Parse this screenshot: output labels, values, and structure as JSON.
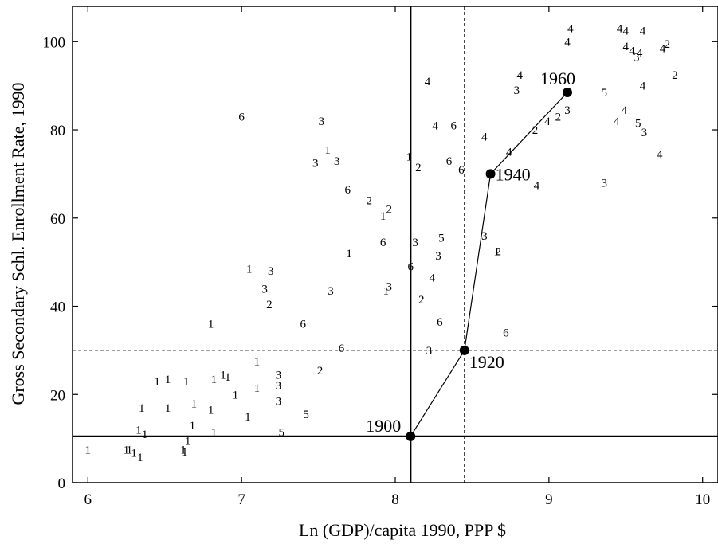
{
  "chart_data": {
    "type": "scatter",
    "xlabel": "Ln (GDP)/capita 1990, PPP $",
    "ylabel": "Gross Secondary Schl. Enrollment Rate, 1990",
    "xlim": [
      5.9,
      10.1
    ],
    "ylim": [
      0,
      108
    ],
    "x_ticks": [
      6,
      7,
      8,
      9,
      10
    ],
    "y_ticks": [
      0,
      20,
      40,
      60,
      80,
      100
    ],
    "grid": false,
    "reference_lines": [
      {
        "orientation": "vertical",
        "value": 8.1,
        "style": "solid"
      },
      {
        "orientation": "horizontal",
        "value": 10.5,
        "style": "solid"
      },
      {
        "orientation": "vertical",
        "value": 8.45,
        "style": "dashed"
      },
      {
        "orientation": "horizontal",
        "value": 30,
        "style": "dashed"
      }
    ],
    "trajectory": [
      {
        "label": "1900",
        "x": 8.1,
        "y": 10.5
      },
      {
        "label": "1920",
        "x": 8.45,
        "y": 30
      },
      {
        "label": "1940",
        "x": 8.62,
        "y": 70
      },
      {
        "label": "1960",
        "x": 9.12,
        "y": 88.5
      }
    ],
    "points": [
      {
        "x": 6.0,
        "y": 7.5,
        "label": "1"
      },
      {
        "x": 6.25,
        "y": 7.5,
        "label": "1"
      },
      {
        "x": 6.27,
        "y": 7.5,
        "label": "1"
      },
      {
        "x": 6.3,
        "y": 6.8,
        "label": "1"
      },
      {
        "x": 6.34,
        "y": 5.8,
        "label": "1"
      },
      {
        "x": 6.62,
        "y": 7.5,
        "label": "1"
      },
      {
        "x": 6.63,
        "y": 7.0,
        "label": "1"
      },
      {
        "x": 6.65,
        "y": 9.5,
        "label": "1"
      },
      {
        "x": 6.33,
        "y": 12.0,
        "label": "1"
      },
      {
        "x": 6.37,
        "y": 11.0,
        "label": "1"
      },
      {
        "x": 6.35,
        "y": 17.0,
        "label": "1"
      },
      {
        "x": 6.45,
        "y": 23.0,
        "label": "1"
      },
      {
        "x": 6.52,
        "y": 23.5,
        "label": "1"
      },
      {
        "x": 6.52,
        "y": 17.0,
        "label": "1"
      },
      {
        "x": 6.64,
        "y": 23.0,
        "label": "1"
      },
      {
        "x": 6.69,
        "y": 18.0,
        "label": "1"
      },
      {
        "x": 6.68,
        "y": 13.0,
        "label": "1"
      },
      {
        "x": 6.8,
        "y": 16.5,
        "label": "1"
      },
      {
        "x": 6.82,
        "y": 11.5,
        "label": "1"
      },
      {
        "x": 6.82,
        "y": 23.5,
        "label": "1"
      },
      {
        "x": 6.88,
        "y": 24.5,
        "label": "1"
      },
      {
        "x": 6.91,
        "y": 24.0,
        "label": "1"
      },
      {
        "x": 6.96,
        "y": 20.0,
        "label": "1"
      },
      {
        "x": 7.04,
        "y": 15.0,
        "label": "1"
      },
      {
        "x": 7.1,
        "y": 21.5,
        "label": "1"
      },
      {
        "x": 7.1,
        "y": 27.5,
        "label": "1"
      },
      {
        "x": 7.24,
        "y": 24.5,
        "label": "3"
      },
      {
        "x": 7.24,
        "y": 22.0,
        "label": "3"
      },
      {
        "x": 7.24,
        "y": 18.5,
        "label": "3"
      },
      {
        "x": 7.26,
        "y": 11.5,
        "label": "5"
      },
      {
        "x": 7.42,
        "y": 15.5,
        "label": "5"
      },
      {
        "x": 7.51,
        "y": 25.5,
        "label": "2"
      },
      {
        "x": 6.8,
        "y": 36.0,
        "label": "1"
      },
      {
        "x": 7.05,
        "y": 48.5,
        "label": "1"
      },
      {
        "x": 7.19,
        "y": 48.0,
        "label": "3"
      },
      {
        "x": 7.15,
        "y": 44.0,
        "label": "3"
      },
      {
        "x": 7.18,
        "y": 40.5,
        "label": "2"
      },
      {
        "x": 7.4,
        "y": 36.0,
        "label": "6"
      },
      {
        "x": 7.58,
        "y": 43.5,
        "label": "3"
      },
      {
        "x": 7.65,
        "y": 30.5,
        "label": "6"
      },
      {
        "x": 7.7,
        "y": 52.0,
        "label": "1"
      },
      {
        "x": 7.0,
        "y": 83.0,
        "label": "6"
      },
      {
        "x": 7.52,
        "y": 82.0,
        "label": "3"
      },
      {
        "x": 7.56,
        "y": 75.5,
        "label": "1"
      },
      {
        "x": 7.48,
        "y": 72.5,
        "label": "3"
      },
      {
        "x": 7.62,
        "y": 73.0,
        "label": "3"
      },
      {
        "x": 7.69,
        "y": 66.5,
        "label": "6"
      },
      {
        "x": 7.83,
        "y": 64.0,
        "label": "2"
      },
      {
        "x": 7.92,
        "y": 60.5,
        "label": "1"
      },
      {
        "x": 7.96,
        "y": 62.0,
        "label": "2"
      },
      {
        "x": 7.92,
        "y": 54.5,
        "label": "6"
      },
      {
        "x": 7.94,
        "y": 43.5,
        "label": "1"
      },
      {
        "x": 7.96,
        "y": 44.5,
        "label": "3"
      },
      {
        "x": 8.1,
        "y": 49.0,
        "label": "6"
      },
      {
        "x": 8.13,
        "y": 54.5,
        "label": "3"
      },
      {
        "x": 8.17,
        "y": 41.5,
        "label": "2"
      },
      {
        "x": 8.24,
        "y": 46.5,
        "label": "4"
      },
      {
        "x": 8.3,
        "y": 55.5,
        "label": "5"
      },
      {
        "x": 8.28,
        "y": 51.5,
        "label": "3"
      },
      {
        "x": 8.29,
        "y": 36.5,
        "label": "6"
      },
      {
        "x": 8.22,
        "y": 30.0,
        "label": "3"
      },
      {
        "x": 8.09,
        "y": 74.0,
        "label": "1"
      },
      {
        "x": 8.15,
        "y": 71.5,
        "label": "2"
      },
      {
        "x": 8.21,
        "y": 91.0,
        "label": "4"
      },
      {
        "x": 8.26,
        "y": 81.0,
        "label": "4"
      },
      {
        "x": 8.38,
        "y": 81.0,
        "label": "6"
      },
      {
        "x": 8.35,
        "y": 73.0,
        "label": "6"
      },
      {
        "x": 8.43,
        "y": 71.0,
        "label": "6"
      },
      {
        "x": 8.58,
        "y": 56.0,
        "label": "3"
      },
      {
        "x": 8.58,
        "y": 78.5,
        "label": "4"
      },
      {
        "x": 8.67,
        "y": 52.5,
        "label": "2"
      },
      {
        "x": 8.66,
        "y": 52.5,
        "label": "1"
      },
      {
        "x": 8.72,
        "y": 34.0,
        "label": "6"
      },
      {
        "x": 8.74,
        "y": 75.0,
        "label": "4"
      },
      {
        "x": 8.79,
        "y": 89.0,
        "label": "3"
      },
      {
        "x": 8.81,
        "y": 92.5,
        "label": "4"
      },
      {
        "x": 8.92,
        "y": 67.5,
        "label": "4"
      },
      {
        "x": 8.91,
        "y": 80.0,
        "label": "2"
      },
      {
        "x": 8.99,
        "y": 82.0,
        "label": "4"
      },
      {
        "x": 9.06,
        "y": 83.0,
        "label": "2"
      },
      {
        "x": 9.12,
        "y": 84.5,
        "label": "3"
      },
      {
        "x": 9.12,
        "y": 100.0,
        "label": "4"
      },
      {
        "x": 9.14,
        "y": 103.0,
        "label": "4"
      },
      {
        "x": 9.36,
        "y": 68.0,
        "label": "3"
      },
      {
        "x": 9.36,
        "y": 88.5,
        "label": "5"
      },
      {
        "x": 9.44,
        "y": 82.0,
        "label": "4"
      },
      {
        "x": 9.49,
        "y": 84.5,
        "label": "4"
      },
      {
        "x": 9.46,
        "y": 103.0,
        "label": "4"
      },
      {
        "x": 9.5,
        "y": 102.5,
        "label": "4"
      },
      {
        "x": 9.5,
        "y": 99.0,
        "label": "4"
      },
      {
        "x": 9.54,
        "y": 98.0,
        "label": "4"
      },
      {
        "x": 9.57,
        "y": 96.5,
        "label": "3"
      },
      {
        "x": 9.59,
        "y": 97.5,
        "label": "4"
      },
      {
        "x": 9.61,
        "y": 102.5,
        "label": "4"
      },
      {
        "x": 9.61,
        "y": 90.0,
        "label": "4"
      },
      {
        "x": 9.58,
        "y": 81.5,
        "label": "5"
      },
      {
        "x": 9.62,
        "y": 79.5,
        "label": "3"
      },
      {
        "x": 9.72,
        "y": 74.5,
        "label": "4"
      },
      {
        "x": 9.74,
        "y": 98.5,
        "label": "4"
      },
      {
        "x": 9.77,
        "y": 99.5,
        "label": "2"
      },
      {
        "x": 9.82,
        "y": 92.5,
        "label": "2"
      }
    ]
  }
}
